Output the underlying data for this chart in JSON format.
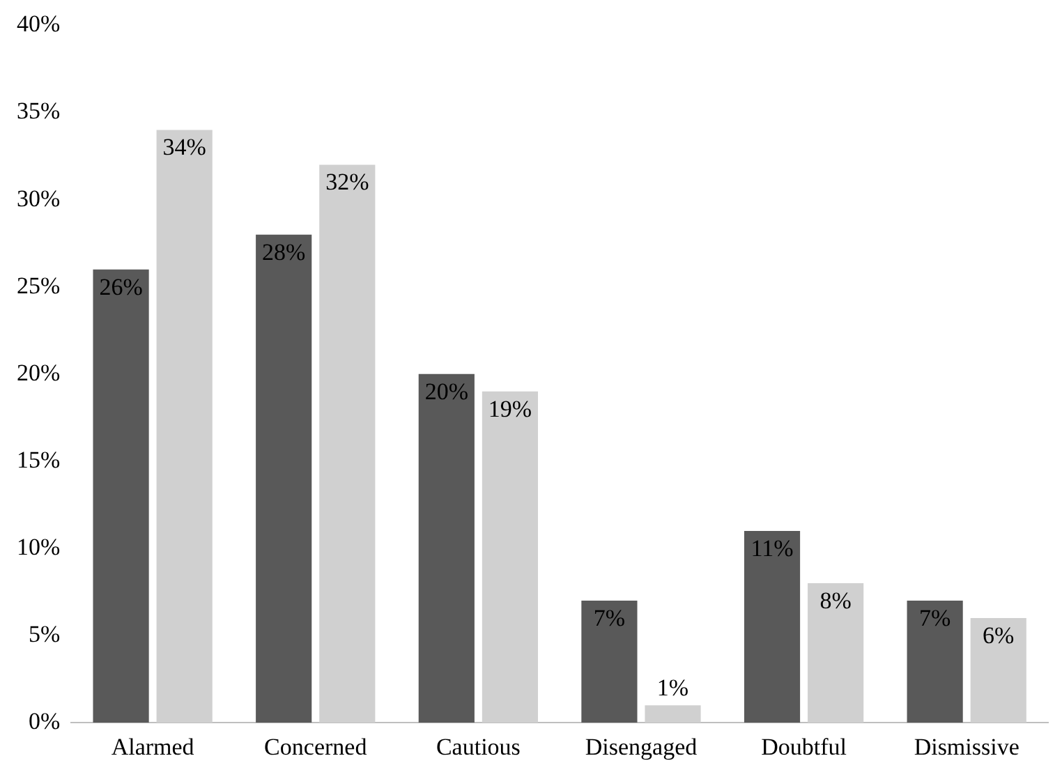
{
  "chart_data": {
    "type": "bar",
    "categories": [
      "Alarmed",
      "Concerned",
      "Cautious",
      "Disengaged",
      "Doubtful",
      "Dismissive"
    ],
    "series": [
      {
        "color": "#595959",
        "values": [
          26,
          28,
          20,
          7,
          11,
          7
        ],
        "value_labels": [
          "26%",
          "28%",
          "20%",
          "7%",
          "11%",
          "7%"
        ]
      },
      {
        "color": "#d0d0d0",
        "values": [
          34,
          32,
          19,
          1,
          8,
          6
        ],
        "value_labels": [
          "34%",
          "32%",
          "19%",
          "1%",
          "8%",
          "6%"
        ]
      }
    ],
    "ylim": [
      0,
      40
    ],
    "yticks": [
      {
        "value": 0,
        "label": "0%"
      },
      {
        "value": 5,
        "label": "5%"
      },
      {
        "value": 10,
        "label": "10%"
      },
      {
        "value": 15,
        "label": "15%"
      },
      {
        "value": 20,
        "label": "20%"
      },
      {
        "value": 25,
        "label": "25%"
      },
      {
        "value": 30,
        "label": "30%"
      },
      {
        "value": 35,
        "label": "35%"
      },
      {
        "value": 40,
        "label": "40%"
      }
    ],
    "grid": false,
    "legend": false
  }
}
